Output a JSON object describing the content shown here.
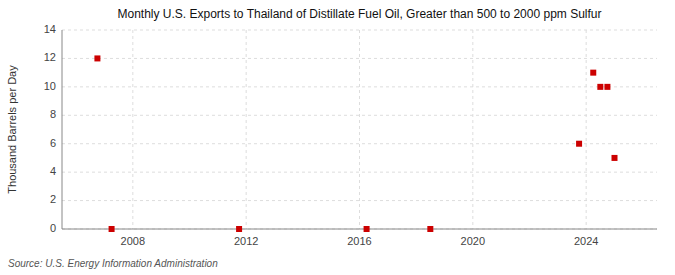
{
  "chart_data": {
    "type": "scatter",
    "title": "Monthly U.S. Exports to Thailand of Distillate Fuel Oil, Greater than 500 to 2000 ppm Sulfur",
    "y_label": "Thousand Barrels per Day",
    "source": "Source: U.S. Energy Information Administration",
    "x": [
      2006.75,
      2007.25,
      2011.75,
      2016.25,
      2018.5,
      2023.75,
      2024.25,
      2024.5,
      2024.75,
      2025.0
    ],
    "values": [
      12.0,
      0.0,
      0.0,
      0.0,
      0.0,
      6.0,
      11.0,
      10.0,
      10.0,
      5.0
    ],
    "color": "#cc0000",
    "marker": "square",
    "xlim": [
      2005.5,
      2026.5
    ],
    "xticks": [
      2008,
      2012,
      2016,
      2020,
      2024
    ],
    "ylim": [
      0,
      14
    ],
    "yticks": [
      0,
      2,
      4,
      6,
      8,
      10,
      12,
      14
    ],
    "grid": true
  }
}
